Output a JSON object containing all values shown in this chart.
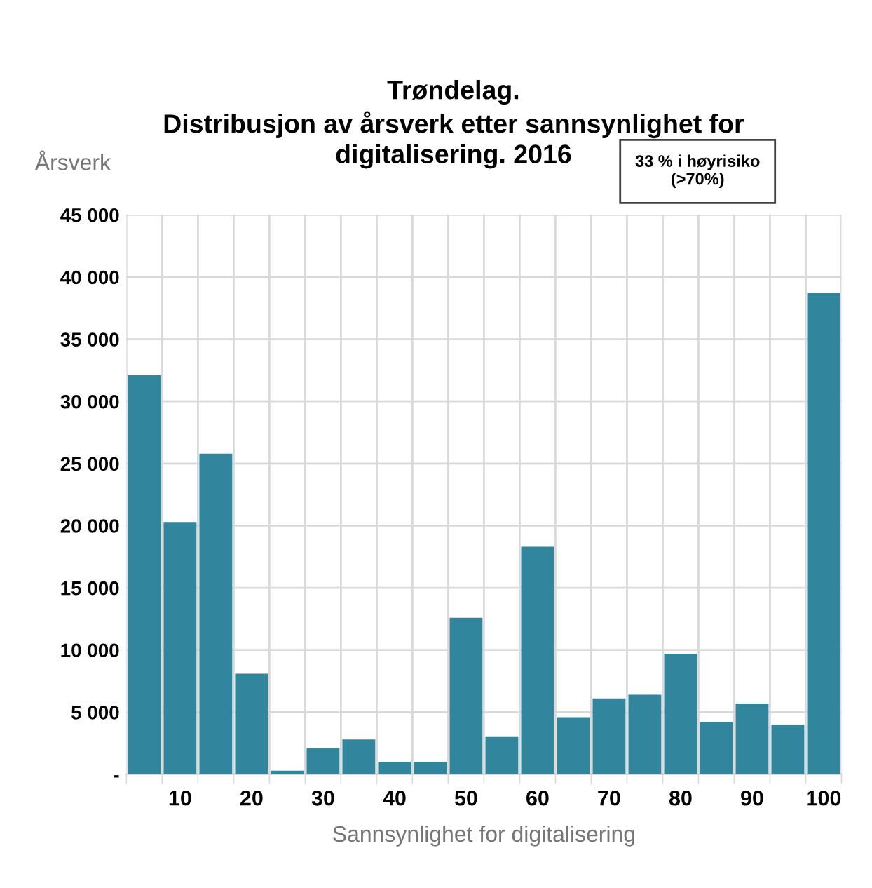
{
  "chart_data": {
    "type": "bar",
    "title": "Trøndelag.\nDistribusjon av årsverk etter sannsynlighet for\ndigitalisering. 2016",
    "xlabel": "Sannsynlighet for digitalisering",
    "ylabel": "Årsverk",
    "annotations": [
      "33 % i høyrisiko\n(>70%)"
    ],
    "categories": [
      null,
      "10",
      null,
      "20",
      null,
      "30",
      null,
      "40",
      null,
      "50",
      null,
      "60",
      null,
      "70",
      null,
      "80",
      null,
      "90",
      null,
      "100"
    ],
    "values": [
      32100,
      20300,
      25800,
      8100,
      300,
      2100,
      2800,
      1000,
      1000,
      12600,
      3000,
      18300,
      4600,
      6100,
      6400,
      9700,
      4200,
      5700,
      4000,
      38700
    ],
    "color": "#31859c",
    "ylim": [
      0,
      45000
    ],
    "yticks": [
      {
        "value": 0,
        "label": "-"
      },
      {
        "value": 5000,
        "label": "5 000"
      },
      {
        "value": 10000,
        "label": "10 000"
      },
      {
        "value": 15000,
        "label": "15 000"
      },
      {
        "value": 20000,
        "label": "20 000"
      },
      {
        "value": 25000,
        "label": "25 000"
      },
      {
        "value": 30000,
        "label": "30 000"
      },
      {
        "value": 35000,
        "label": "35 000"
      },
      {
        "value": 40000,
        "label": "40 000"
      },
      {
        "value": 45000,
        "label": "45 000"
      }
    ],
    "grid": true
  }
}
